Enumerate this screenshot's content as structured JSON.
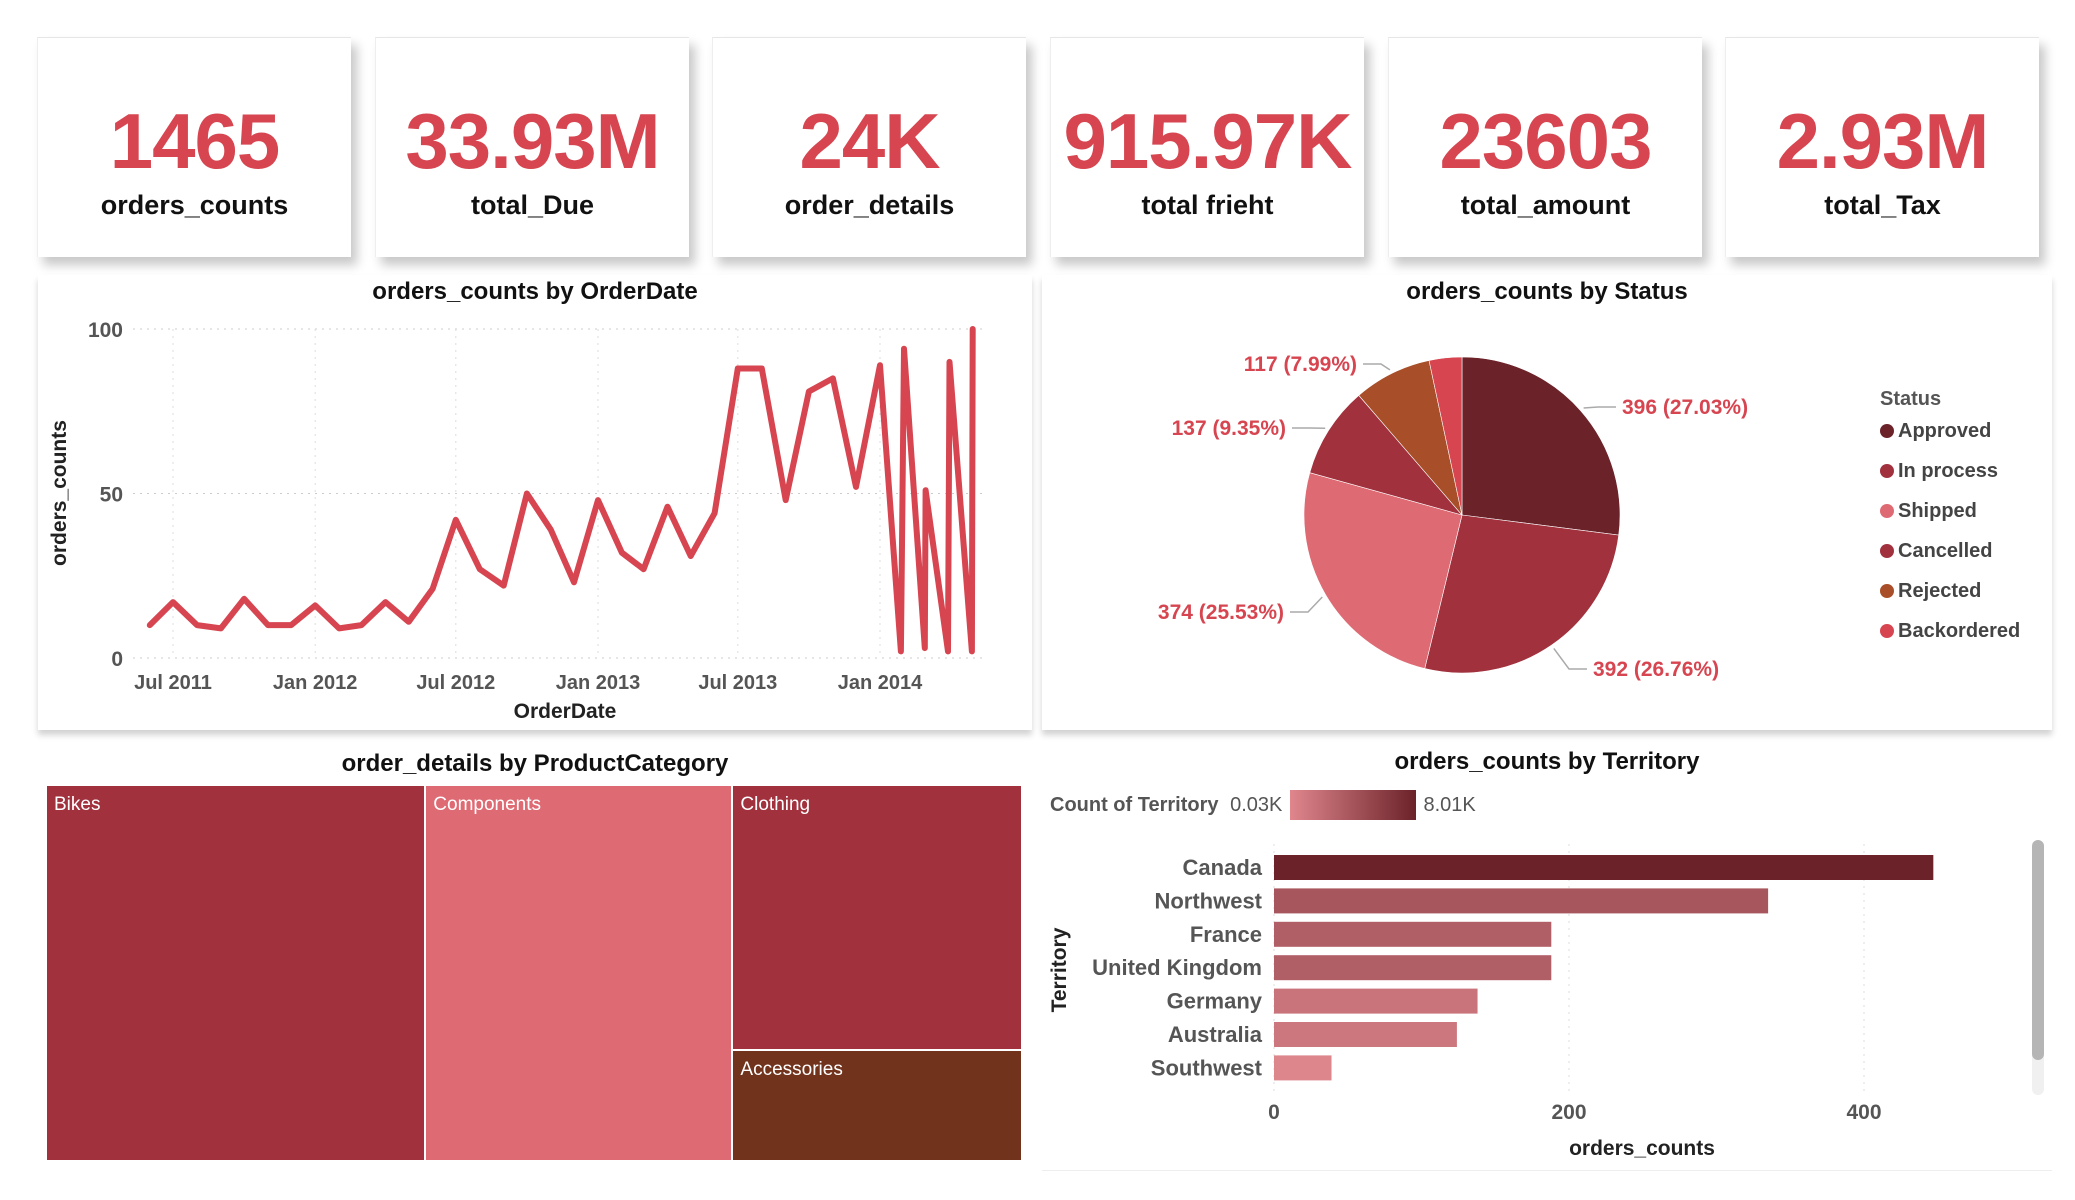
{
  "kpis": [
    {
      "value": "1465",
      "label": "orders_counts"
    },
    {
      "value": "33.93M",
      "label": "total_Due"
    },
    {
      "value": "24K",
      "label": "order_details"
    },
    {
      "value": "915.97K",
      "label": "total frieht"
    },
    {
      "value": "23603",
      "label": "total_amount"
    },
    {
      "value": "2.93M",
      "label": "total_Tax"
    }
  ],
  "colors": {
    "accent": "#D64550"
  },
  "chart_data": [
    {
      "type": "line",
      "title": "orders_counts by OrderDate",
      "xlabel": "OrderDate",
      "ylabel": "orders_counts",
      "ylim": [
        0,
        100
      ],
      "yticks": [
        "0",
        "50",
        "100"
      ],
      "xticks": [
        {
          "date": "2011-07-01",
          "label": "Jul 2011"
        },
        {
          "date": "2012-01-01",
          "label": "Jan 2012"
        },
        {
          "date": "2012-07-01",
          "label": "Jul 2012"
        },
        {
          "date": "2013-01-01",
          "label": "Jan 2013"
        },
        {
          "date": "2013-07-01",
          "label": "Jul 2013"
        },
        {
          "date": "2014-01-01",
          "label": "Jan 2014"
        }
      ],
      "grid": true,
      "color": "#D64550",
      "x": [
        "2011-06-01",
        "2011-07-01",
        "2011-08-01",
        "2011-09-01",
        "2011-10-01",
        "2011-11-01",
        "2011-12-01",
        "2012-01-01",
        "2012-02-01",
        "2012-03-01",
        "2012-04-01",
        "2012-05-01",
        "2012-06-01",
        "2012-07-01",
        "2012-08-01",
        "2012-09-01",
        "2012-10-01",
        "2012-11-01",
        "2012-12-01",
        "2013-01-01",
        "2013-02-01",
        "2013-03-01",
        "2013-04-01",
        "2013-05-01",
        "2013-06-01",
        "2013-07-01",
        "2013-08-01",
        "2013-09-01",
        "2013-10-01",
        "2013-11-01",
        "2013-12-01",
        "2014-01-01",
        "2014-01-28",
        "2014-02-01",
        "2014-02-28",
        "2014-03-01",
        "2014-03-30",
        "2014-04-01",
        "2014-04-30",
        "2014-05-01"
      ],
      "y": [
        10,
        17,
        10,
        9,
        18,
        10,
        10,
        16,
        9,
        10,
        17,
        11,
        21,
        42,
        27,
        22,
        50,
        39,
        23,
        48,
        32,
        27,
        46,
        31,
        44,
        88,
        88,
        48,
        81,
        85,
        52,
        89,
        2,
        94,
        3,
        51,
        2,
        90,
        2,
        100
      ]
    },
    {
      "type": "pie",
      "title": "orders_counts by Status",
      "legend_title": "Status",
      "legend_position": "right",
      "slices": [
        {
          "name": "Approved",
          "value": 396,
          "label": "396 (27.03%)",
          "color": "#6B2229"
        },
        {
          "name": "In process",
          "value": 392,
          "label": "392 (26.76%)",
          "color": "#A0313D"
        },
        {
          "name": "Shipped",
          "value": 374,
          "label": "374 (25.53%)",
          "color": "#DE6A73"
        },
        {
          "name": "Cancelled",
          "value": 137,
          "label": "137 (9.35%)",
          "color": "#A0313D"
        },
        {
          "name": "Rejected",
          "value": 117,
          "label": "117 (7.99%)",
          "color": "#A84E28"
        },
        {
          "name": "Backordered",
          "value": 49,
          "label": "",
          "color": "#D64550"
        }
      ]
    },
    {
      "type": "treemap",
      "title": "order_details by ProductCategory",
      "items": [
        {
          "name": "Bikes",
          "share": 38.9,
          "color": "#A0313D"
        },
        {
          "name": "Components",
          "share": 31.5,
          "color": "#DE6A73"
        },
        {
          "name": "Clothing",
          "share": 20.9,
          "color": "#A0313D"
        },
        {
          "name": "Accessories",
          "share": 8.8,
          "color": "#71331C"
        }
      ]
    },
    {
      "type": "bar",
      "orientation": "horizontal",
      "title": "orders_counts by Territory",
      "xlabel": "orders_counts",
      "ylabel": "Territory",
      "xlim": [
        0,
        480
      ],
      "xticks": [
        "0",
        "200",
        "400"
      ],
      "color_legend": {
        "label": "Count of Territory",
        "min": "0.03K",
        "max": "8.01K",
        "min_color": "#E0868D",
        "max_color": "#6B2229"
      },
      "categories": [
        "Canada",
        "Northwest",
        "France",
        "United Kingdom",
        "Germany",
        "Australia",
        "Southwest"
      ],
      "values": [
        447,
        335,
        188,
        188,
        138,
        124,
        39
      ],
      "colors": [
        "#6B2229",
        "#A6565C",
        "#B15F66",
        "#B15F66",
        "#C9747B",
        "#CC767D",
        "#DD868C"
      ]
    }
  ]
}
